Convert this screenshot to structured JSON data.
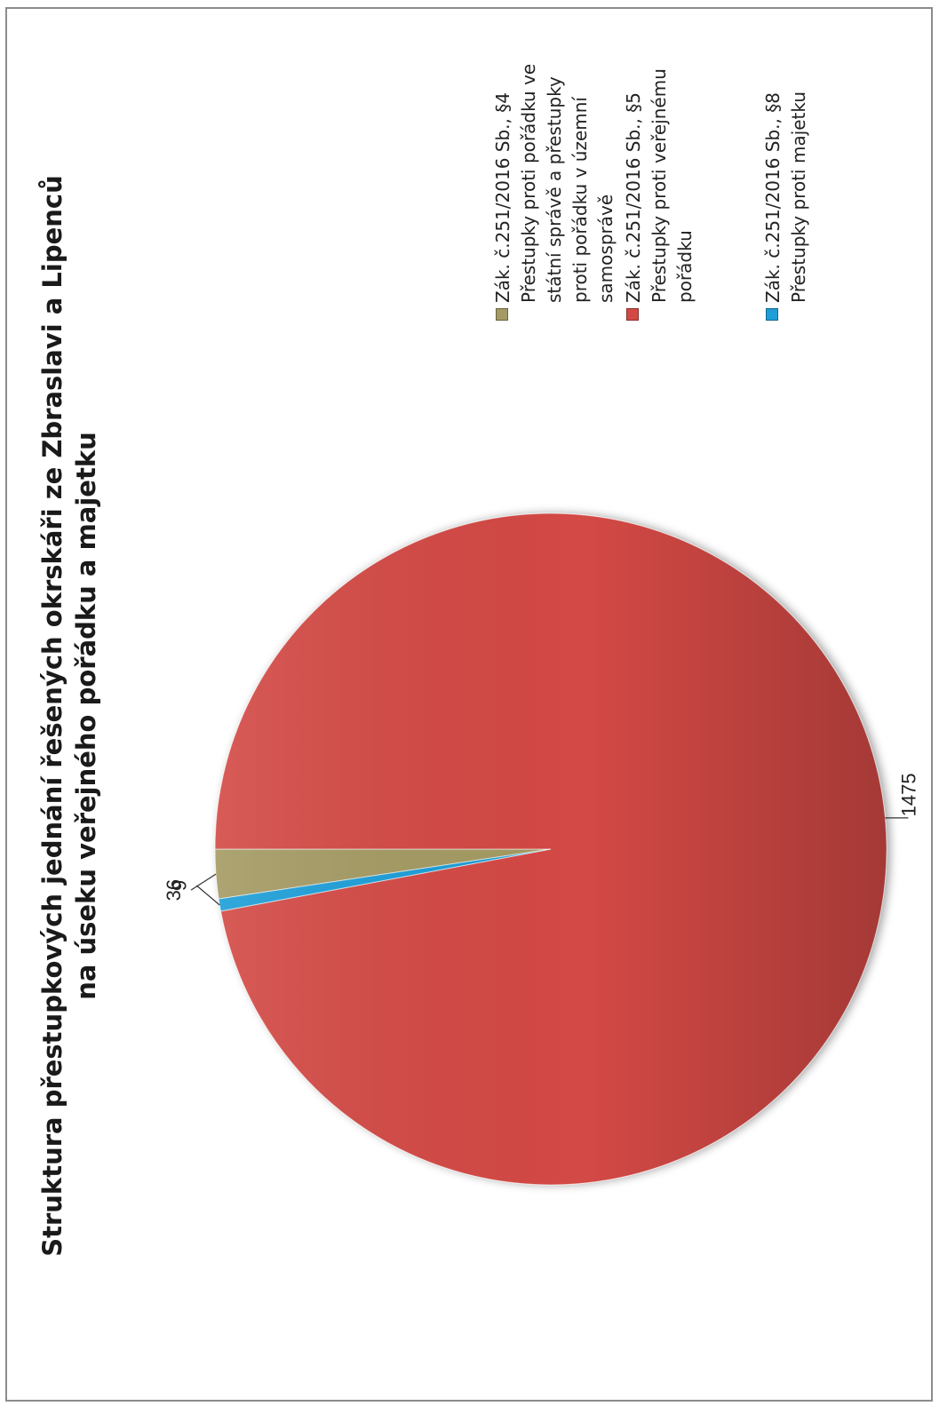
{
  "chart_data": {
    "type": "pie",
    "title": "Struktura přestupkových jednání řešených okrskáři ze Zbraslavi a Lipenců\nna úseku veřejného pořádku a majetku",
    "slices": [
      {
        "label": "Zák. č.251/2016 Sb., §4 Přestupky proti pořádku ve státní správě a přestupky proti pořádku v územní samosprávě",
        "value": 36,
        "color": "#a49a64"
      },
      {
        "label": "Zák. č.251/2016 Sb., §5 Přestupky proti veřejnému pořádku",
        "value": 1475,
        "color": "#d34a45"
      },
      {
        "label": "Zák. č.251/2016 Sb., §8 Přestupky proti majetku",
        "value": 9,
        "color": "#1e9ed8"
      }
    ],
    "data_labels": [
      "36",
      "1475",
      "9"
    ],
    "legend_position": "right"
  }
}
